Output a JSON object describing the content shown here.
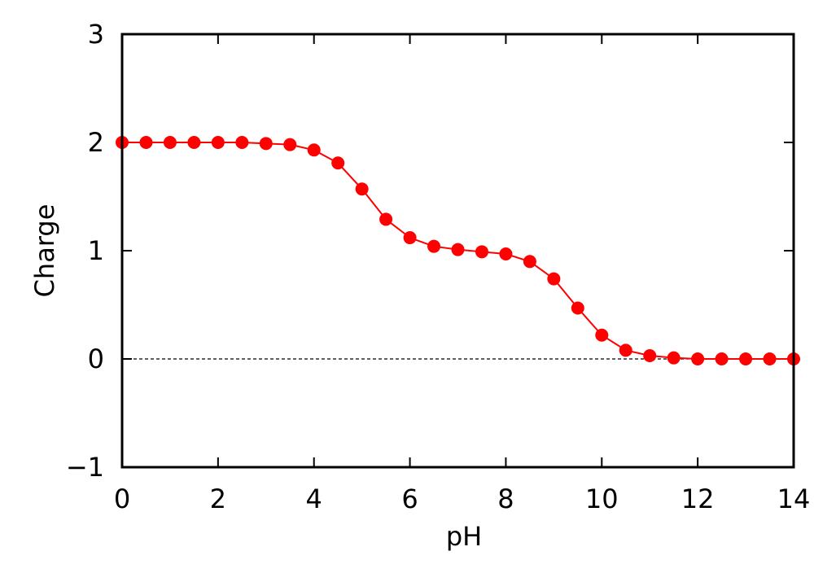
{
  "chart_data": {
    "type": "line",
    "x_label": "pH",
    "y_label": "Charge",
    "x": [
      0,
      0.5,
      1,
      1.5,
      2,
      2.5,
      3,
      3.5,
      4,
      4.5,
      5,
      5.5,
      6,
      6.5,
      7,
      7.5,
      8,
      8.5,
      9,
      9.5,
      10,
      10.5,
      11,
      11.5,
      12,
      12.5,
      13,
      13.5,
      14
    ],
    "series": [
      {
        "color": "#ff0000",
        "values": [
          2.0,
          2.0,
          2.0,
          2.0,
          2.0,
          2.0,
          1.99,
          1.98,
          1.93,
          1.81,
          1.57,
          1.29,
          1.12,
          1.04,
          1.01,
          0.99,
          0.97,
          0.9,
          0.74,
          0.47,
          0.22,
          0.08,
          0.03,
          0.01,
          0.0,
          0.0,
          0.0,
          0.0,
          0.0
        ]
      }
    ],
    "xlim": [
      0,
      14
    ],
    "xticks": [
      0,
      2,
      4,
      6,
      8,
      10,
      12,
      14
    ],
    "ylim": [
      -1,
      3
    ],
    "yticks": [
      {
        "value": -1,
        "label": "−1"
      },
      0,
      1,
      2,
      3
    ],
    "hline": 0,
    "grid": false,
    "mirror_ticks": true
  }
}
